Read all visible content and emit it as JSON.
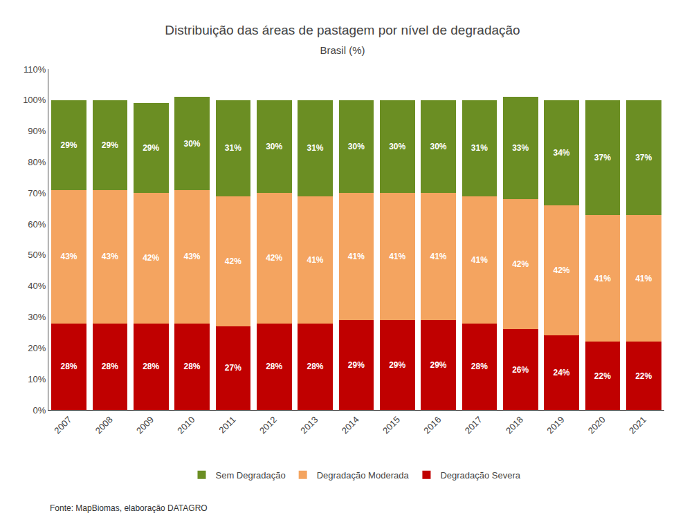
{
  "chart_data": {
    "type": "bar",
    "title": "Distribuição das áreas de pastagem por nível de degradação",
    "subtitle": "Brasil (%)",
    "annotations": [
      "Fonte: MapBiomas, elaboração DATAGRO"
    ],
    "categories": [
      "2007",
      "2008",
      "2009",
      "2010",
      "2011",
      "2012",
      "2013",
      "2014",
      "2015",
      "2016",
      "2017",
      "2018",
      "2019",
      "2020",
      "2021"
    ],
    "series": [
      {
        "name": "Degradação Severa",
        "color": "#C00000",
        "values": [
          28,
          28,
          28,
          28,
          27,
          28,
          28,
          29,
          29,
          29,
          28,
          26,
          24,
          22,
          22
        ],
        "value_labels": [
          "28%",
          "28%",
          "28%",
          "28%",
          "27%",
          "28%",
          "28%",
          "29%",
          "29%",
          "29%",
          "28%",
          "26%",
          "24%",
          "22%",
          "22%"
        ]
      },
      {
        "name": "Degradação Moderada",
        "color": "#F4A460",
        "values": [
          43,
          43,
          42,
          43,
          42,
          42,
          41,
          41,
          41,
          41,
          41,
          42,
          42,
          41,
          41
        ],
        "value_labels": [
          "43%",
          "43%",
          "42%",
          "43%",
          "42%",
          "42%",
          "41%",
          "41%",
          "41%",
          "41%",
          "41%",
          "42%",
          "42%",
          "41%",
          "41%"
        ]
      },
      {
        "name": "Sem Degradação",
        "color": "#6B8E23",
        "values": [
          29,
          29,
          29,
          30,
          31,
          30,
          31,
          30,
          30,
          30,
          31,
          33,
          34,
          37,
          37
        ],
        "value_labels": [
          "29%",
          "29%",
          "29%",
          "30%",
          "31%",
          "30%",
          "31%",
          "30%",
          "30%",
          "30%",
          "31%",
          "33%",
          "34%",
          "37%",
          "37%"
        ]
      }
    ],
    "stacked": true,
    "data_labels": true,
    "grid": false,
    "legend": "bottom",
    "ylim": [
      0,
      110
    ],
    "yticks": [
      {
        "value": 0,
        "label": "0%"
      },
      {
        "value": 10,
        "label": "10%"
      },
      {
        "value": 20,
        "label": "20%"
      },
      {
        "value": 30,
        "label": "30%"
      },
      {
        "value": 40,
        "label": "40%"
      },
      {
        "value": 50,
        "label": "50%"
      },
      {
        "value": 60,
        "label": "60%"
      },
      {
        "value": 70,
        "label": "70%"
      },
      {
        "value": 80,
        "label": "80%"
      },
      {
        "value": 90,
        "label": "90%"
      },
      {
        "value": 100,
        "label": "100%"
      },
      {
        "value": 110,
        "label": "110%"
      }
    ]
  }
}
